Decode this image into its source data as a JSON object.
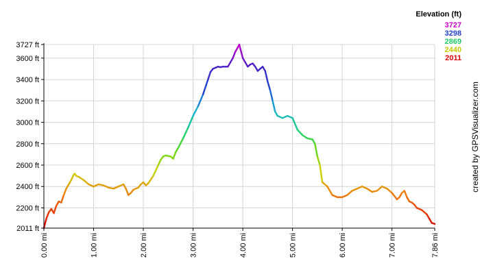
{
  "chart_data": {
    "type": "line",
    "title": "",
    "xlabel": "",
    "ylabel": "",
    "x_unit": "mi",
    "y_unit": "ft",
    "xlim": [
      0,
      7.86
    ],
    "ylim": [
      2011,
      3727
    ],
    "x_ticks": [
      "0.00 mi",
      "1.00 mi",
      "2.00 mi",
      "3.00 mi",
      "4.00 mi",
      "5.00 mi",
      "6.00 mi",
      "7.00 mi",
      "7.86 mi"
    ],
    "x_tick_values": [
      0,
      1,
      2,
      3,
      4,
      5,
      6,
      7,
      7.86
    ],
    "y_ticks": [
      "2011 ft",
      "2200 ft",
      "2400 ft",
      "2600 ft",
      "2800 ft",
      "3000 ft",
      "3200 ft",
      "3400 ft",
      "3600 ft",
      "3727 ft"
    ],
    "y_tick_values": [
      2011,
      2200,
      2400,
      2600,
      2800,
      3000,
      3200,
      3400,
      3600,
      3727
    ],
    "grid": true,
    "legend": {
      "title": "Elevation (ft)",
      "placement": "top-right",
      "entries": [
        {
          "label": "3727",
          "color": "#cc00cc"
        },
        {
          "label": "3298",
          "color": "#1f3fcf"
        },
        {
          "label": "2869",
          "color": "#22cc66"
        },
        {
          "label": "2440",
          "color": "#c8c800"
        },
        {
          "label": "2011",
          "color": "#dd0000"
        }
      ]
    },
    "series": [
      {
        "x": [
          0.0,
          0.05,
          0.1,
          0.15,
          0.2,
          0.25,
          0.3,
          0.35,
          0.4,
          0.45,
          0.5,
          0.55,
          0.6,
          0.62,
          0.65,
          0.7,
          0.8,
          0.9,
          1.0,
          1.1,
          1.2,
          1.3,
          1.4,
          1.5,
          1.6,
          1.65,
          1.7,
          1.75,
          1.8,
          1.9,
          1.95,
          2.0,
          2.05,
          2.1,
          2.2,
          2.3,
          2.35,
          2.4,
          2.45,
          2.55,
          2.6,
          2.65,
          2.7,
          2.8,
          2.9,
          3.0,
          3.1,
          3.2,
          3.3,
          3.35,
          3.4,
          3.45,
          3.5,
          3.55,
          3.6,
          3.7,
          3.8,
          3.85,
          3.9,
          3.93,
          3.95,
          4.0,
          4.05,
          4.1,
          4.15,
          4.2,
          4.25,
          4.3,
          4.35,
          4.4,
          4.45,
          4.5,
          4.55,
          4.6,
          4.65,
          4.7,
          4.8,
          4.9,
          5.0,
          5.1,
          5.2,
          5.3,
          5.4,
          5.45,
          5.5,
          5.55,
          5.6,
          5.7,
          5.8,
          5.9,
          6.0,
          6.1,
          6.2,
          6.3,
          6.4,
          6.5,
          6.6,
          6.7,
          6.8,
          6.9,
          7.0,
          7.1,
          7.15,
          7.2,
          7.25,
          7.3,
          7.35,
          7.4,
          7.45,
          7.5,
          7.6,
          7.7,
          7.75,
          7.8,
          7.86
        ],
        "values": [
          2011,
          2100,
          2160,
          2190,
          2150,
          2220,
          2260,
          2250,
          2320,
          2380,
          2420,
          2460,
          2510,
          2520,
          2500,
          2490,
          2460,
          2420,
          2400,
          2420,
          2410,
          2390,
          2380,
          2400,
          2420,
          2380,
          2320,
          2340,
          2370,
          2390,
          2420,
          2440,
          2410,
          2430,
          2500,
          2600,
          2650,
          2680,
          2690,
          2680,
          2660,
          2720,
          2760,
          2850,
          2950,
          3060,
          3150,
          3260,
          3400,
          3470,
          3500,
          3510,
          3520,
          3515,
          3520,
          3520,
          3600,
          3660,
          3700,
          3727,
          3690,
          3600,
          3560,
          3520,
          3540,
          3550,
          3520,
          3480,
          3500,
          3520,
          3480,
          3380,
          3300,
          3200,
          3100,
          3060,
          3040,
          3060,
          3040,
          2930,
          2880,
          2850,
          2840,
          2800,
          2680,
          2600,
          2440,
          2400,
          2320,
          2300,
          2300,
          2320,
          2360,
          2380,
          2400,
          2380,
          2350,
          2360,
          2400,
          2380,
          2340,
          2280,
          2300,
          2340,
          2360,
          2300,
          2260,
          2250,
          2230,
          2200,
          2180,
          2140,
          2100,
          2060,
          2050
        ]
      }
    ]
  },
  "credit": "created by GPSVisualizer.com"
}
